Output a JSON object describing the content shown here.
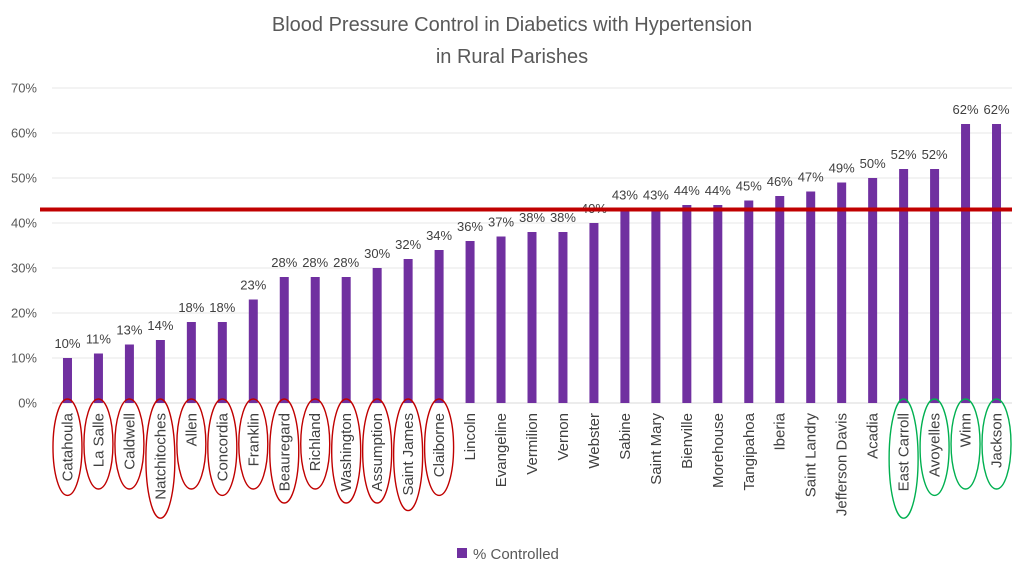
{
  "chart_data": {
    "type": "bar",
    "title": "Blood Pressure Control in Diabetics with Hypertension in Rural Parishes",
    "title_lines": [
      "Blood Pressure Control in Diabetics with Hypertension",
      "in Rural Parishes"
    ],
    "xlabel": "",
    "ylabel": "",
    "ylim": [
      0,
      70
    ],
    "y_ticks": [
      "0%",
      "10%",
      "20%",
      "30%",
      "40%",
      "50%",
      "60%",
      "70%"
    ],
    "y_tick_values": [
      0,
      10,
      20,
      30,
      40,
      50,
      60,
      70
    ],
    "grid": true,
    "legend_position": "bottom",
    "series": [
      {
        "name": "% Controlled",
        "color": "#7030A0",
        "values": [
          10,
          11,
          13,
          14,
          18,
          18,
          23,
          28,
          28,
          28,
          30,
          32,
          34,
          36,
          37,
          38,
          38,
          40,
          43,
          43,
          44,
          44,
          45,
          46,
          47,
          49,
          50,
          52,
          52,
          62,
          62
        ]
      }
    ],
    "categories": [
      "Catahoula",
      "La Salle",
      "Caldwell",
      "Natchitoches",
      "Allen",
      "Concordia",
      "Franklin",
      "Beauregard",
      "Richland",
      "Washington",
      "Assumption",
      "Saint James",
      "Claiborne",
      "Lincoln",
      "Evangeline",
      "Vermilion",
      "Vernon",
      "Webster",
      "Sabine",
      "Saint Mary",
      "Bienville",
      "Morehouse",
      "Tangipahoa",
      "Iberia",
      "Saint Landry",
      "Jefferson Davis",
      "Acadia",
      "East Carroll",
      "Avoyelles",
      "Winn",
      "Jackson"
    ],
    "data_labels": [
      "10%",
      "11%",
      "13%",
      "14%",
      "18%",
      "18%",
      "23%",
      "28%",
      "28%",
      "28%",
      "30%",
      "32%",
      "34%",
      "36%",
      "37%",
      "38%",
      "38%",
      "40%",
      "43%",
      "43%",
      "44%",
      "44%",
      "45%",
      "46%",
      "47%",
      "49%",
      "50%",
      "52%",
      "52%",
      "62%",
      "62%"
    ],
    "reference_line": {
      "value": 43,
      "color": "#C00000"
    },
    "annotations": {
      "red_circled_categories": [
        "Catahoula",
        "La Salle",
        "Caldwell",
        "Natchitoches",
        "Allen",
        "Concordia",
        "Franklin",
        "Beauregard",
        "Richland",
        "Washington",
        "Assumption",
        "Saint James",
        "Claiborne"
      ],
      "green_circled_categories": [
        "East Carroll",
        "Avoyelles",
        "Winn",
        "Jackson"
      ],
      "red_color": "#C00000",
      "green_color": "#00B050"
    }
  }
}
